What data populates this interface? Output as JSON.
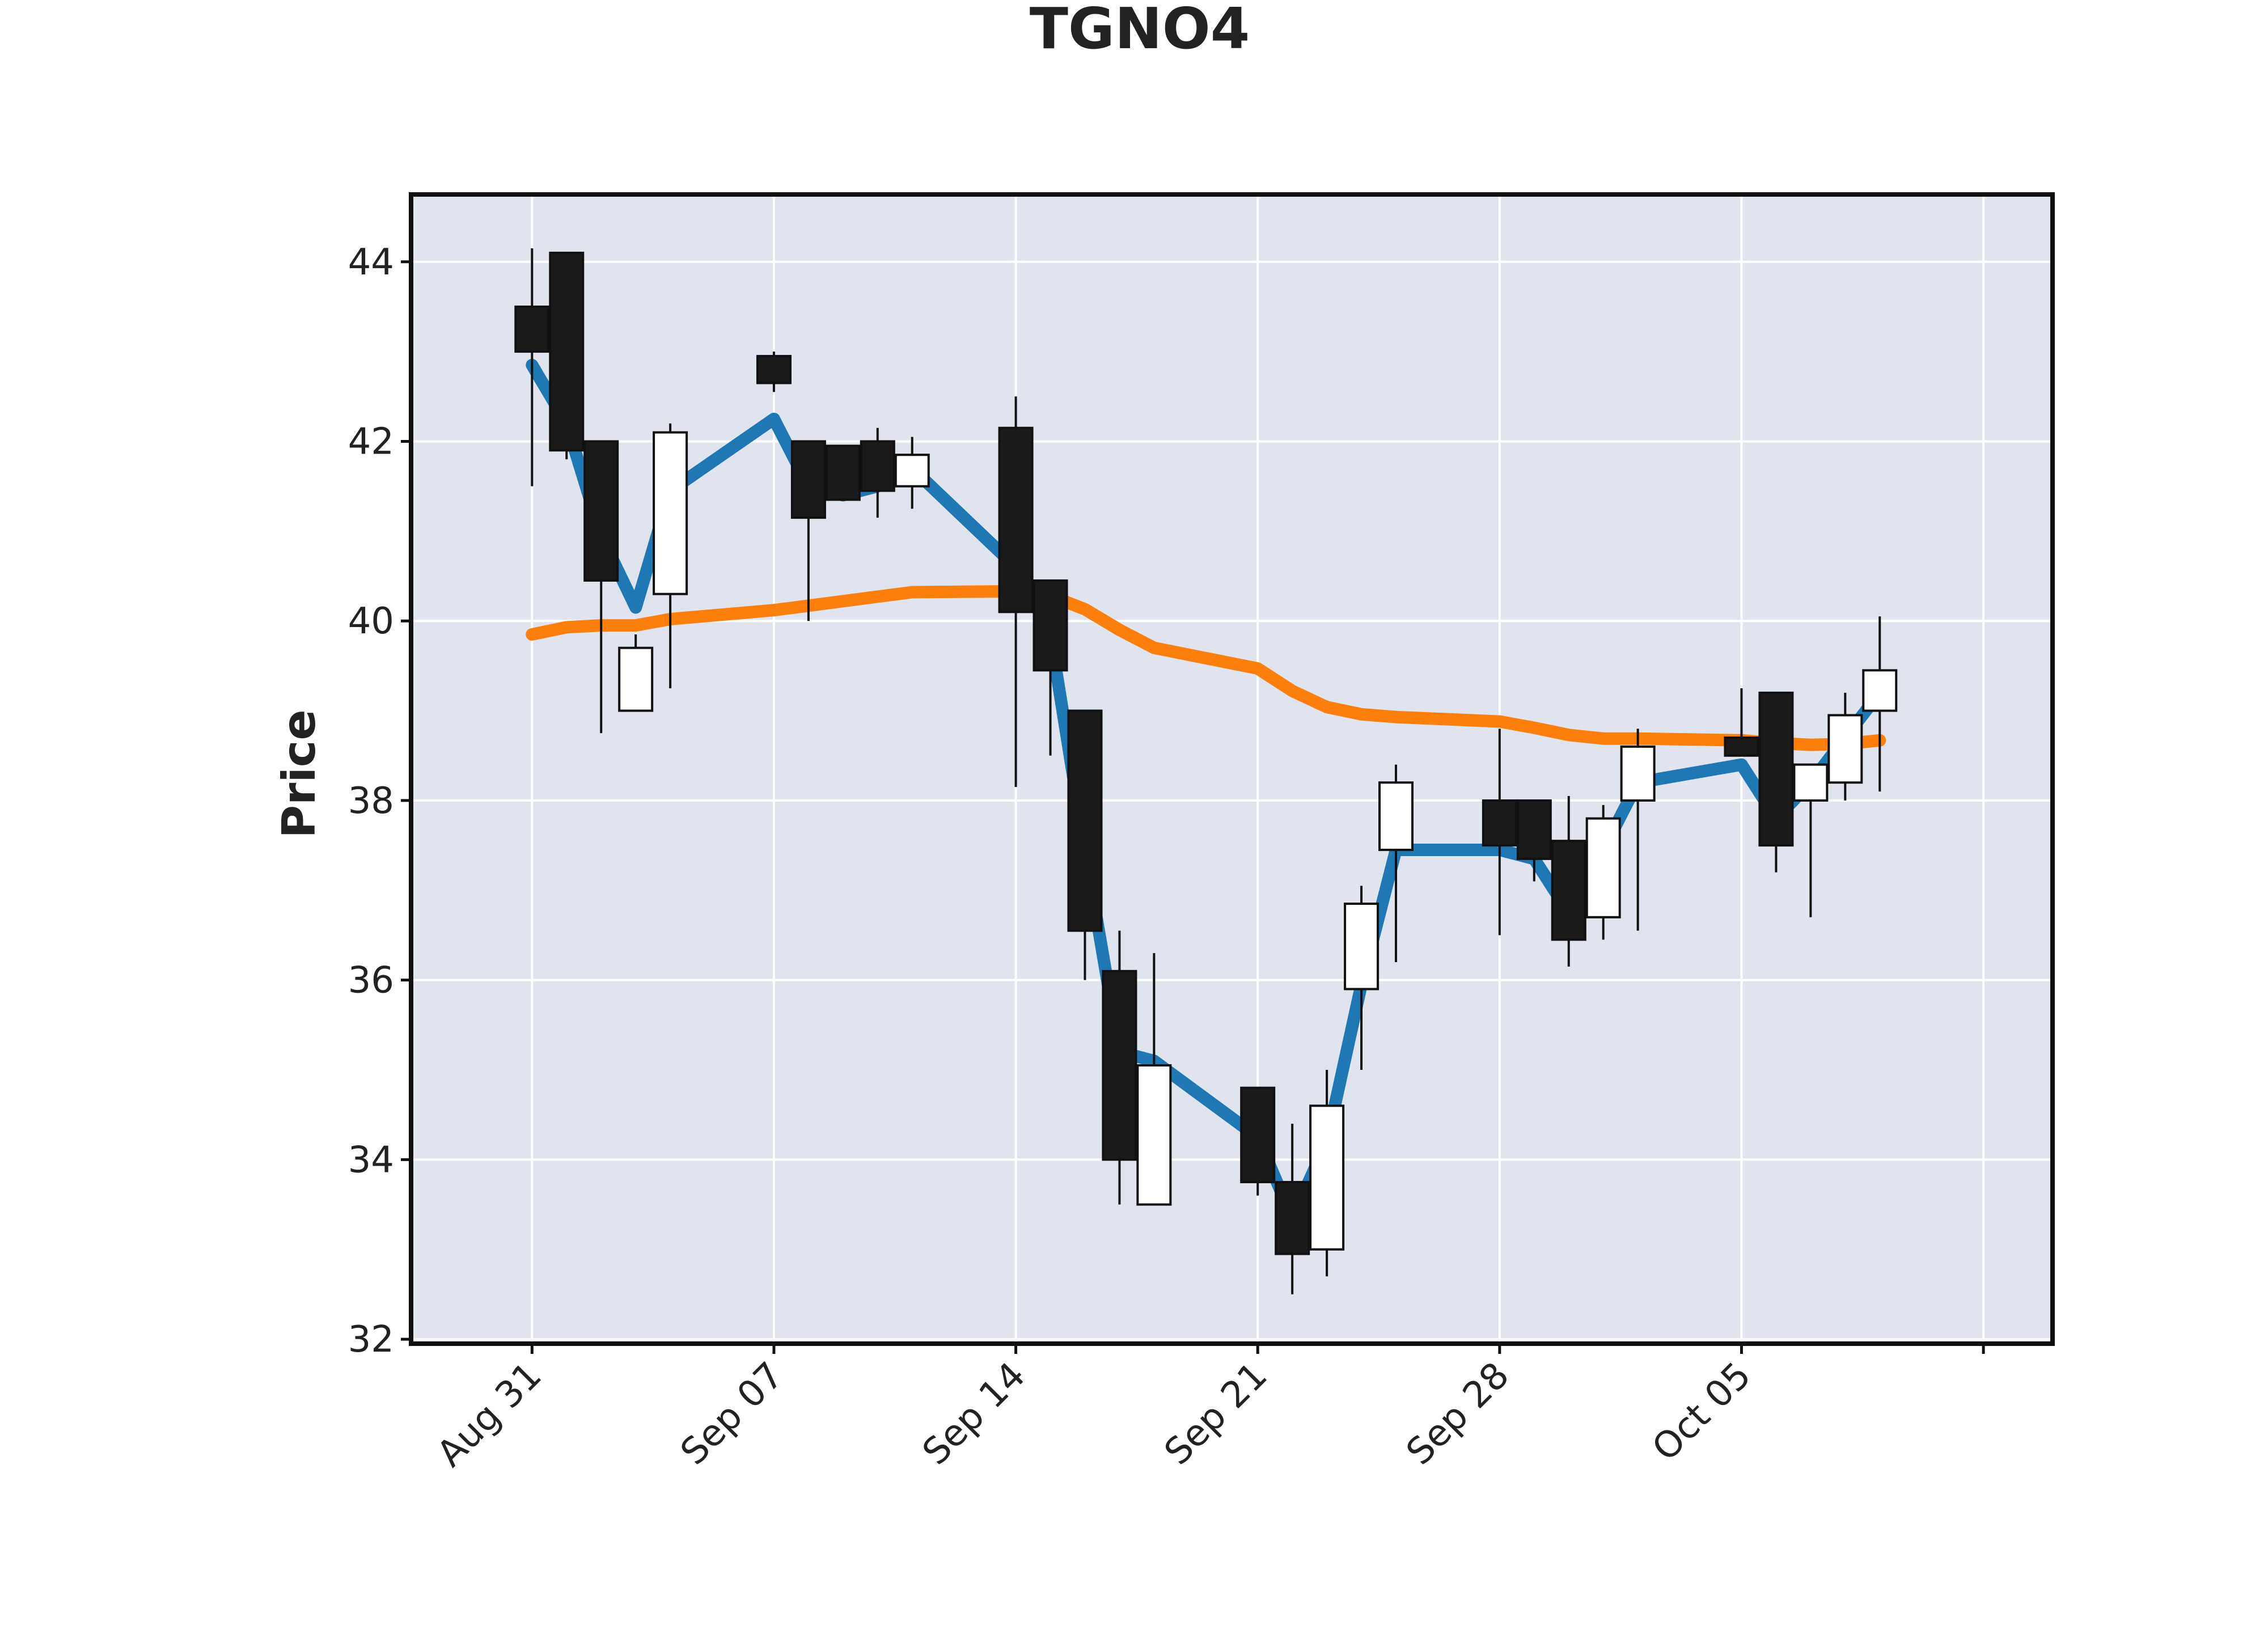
{
  "chart_data": {
    "type": "candlestick",
    "title": "TGNO4",
    "ylabel": "Price",
    "xlabel": "",
    "ylim": [
      31.95,
      44.75
    ],
    "yticks": [
      32,
      34,
      36,
      38,
      40,
      42,
      44
    ],
    "xticks": [
      {
        "label": "Aug 31",
        "day": 0
      },
      {
        "label": "Sep 07",
        "day": 7
      },
      {
        "label": "Sep 14",
        "day": 14
      },
      {
        "label": "Sep 21",
        "day": 21
      },
      {
        "label": "Sep 28",
        "day": 28
      },
      {
        "label": "Oct 05",
        "day": 35
      }
    ],
    "xlim": [
      -3.5,
      44
    ],
    "grid": true,
    "colors": {
      "background": "#dfe4ef",
      "grid": "#ffffff",
      "up": "#ffffff",
      "down": "#1a1a1a",
      "wick": "#111111",
      "ma_fast": "#1f77b4",
      "ma_slow": "#ff7f0e"
    },
    "candles": [
      {
        "date": "2020-08-31",
        "open": 43.5,
        "high": 44.15,
        "low": 41.5,
        "close": 43.0
      },
      {
        "date": "2020-09-01",
        "open": 44.1,
        "high": 44.1,
        "low": 41.8,
        "close": 41.9
      },
      {
        "date": "2020-09-02",
        "open": 42.0,
        "high": 42.0,
        "low": 38.75,
        "close": 40.45
      },
      {
        "date": "2020-09-03",
        "open": 39.0,
        "high": 39.85,
        "low": 39.0,
        "close": 39.7
      },
      {
        "date": "2020-09-04",
        "open": 40.3,
        "high": 42.2,
        "low": 39.25,
        "close": 42.1
      },
      {
        "date": "2020-09-07",
        "open": 42.95,
        "high": 43.0,
        "low": 42.55,
        "close": 42.65
      },
      {
        "date": "2020-09-08",
        "open": 42.0,
        "high": 42.0,
        "low": 40.0,
        "close": 41.15
      },
      {
        "date": "2020-09-09",
        "open": 41.95,
        "high": 41.95,
        "low": 41.35,
        "close": 41.35
      },
      {
        "date": "2020-09-10",
        "open": 42.0,
        "high": 42.15,
        "low": 41.15,
        "close": 41.45
      },
      {
        "date": "2020-09-11",
        "open": 41.5,
        "high": 42.05,
        "low": 41.25,
        "close": 41.85
      },
      {
        "date": "2020-09-14",
        "open": 42.15,
        "high": 42.5,
        "low": 38.15,
        "close": 40.1
      },
      {
        "date": "2020-09-15",
        "open": 40.45,
        "high": 40.45,
        "low": 38.5,
        "close": 39.45
      },
      {
        "date": "2020-09-16",
        "open": 39.0,
        "high": 39.0,
        "low": 36.0,
        "close": 36.55
      },
      {
        "date": "2020-09-17",
        "open": 36.1,
        "high": 36.55,
        "low": 33.5,
        "close": 34.0
      },
      {
        "date": "2020-09-18",
        "open": 33.5,
        "high": 36.3,
        "low": 33.5,
        "close": 35.05
      },
      {
        "date": "2020-09-21",
        "open": 34.8,
        "high": 34.8,
        "low": 33.6,
        "close": 33.75
      },
      {
        "date": "2020-09-22",
        "open": 33.75,
        "high": 34.4,
        "low": 32.5,
        "close": 32.95
      },
      {
        "date": "2020-09-23",
        "open": 33.0,
        "high": 35.0,
        "low": 32.7,
        "close": 34.6
      },
      {
        "date": "2020-09-24",
        "open": 35.9,
        "high": 37.05,
        "low": 35.0,
        "close": 36.85
      },
      {
        "date": "2020-09-25",
        "open": 37.45,
        "high": 38.4,
        "low": 36.2,
        "close": 38.2
      },
      {
        "date": "2020-09-28",
        "open": 38.0,
        "high": 38.8,
        "low": 36.5,
        "close": 37.5
      },
      {
        "date": "2020-09-29",
        "open": 38.0,
        "high": 38.0,
        "low": 37.1,
        "close": 37.35
      },
      {
        "date": "2020-09-30",
        "open": 37.55,
        "high": 38.05,
        "low": 36.15,
        "close": 36.45
      },
      {
        "date": "2020-10-01",
        "open": 36.7,
        "high": 37.95,
        "low": 36.45,
        "close": 37.8
      },
      {
        "date": "2020-10-02",
        "open": 38.0,
        "high": 38.8,
        "low": 36.55,
        "close": 38.6
      },
      {
        "date": "2020-10-05",
        "open": 38.7,
        "high": 39.25,
        "low": 38.5,
        "close": 38.5
      },
      {
        "date": "2020-10-06",
        "open": 39.2,
        "high": 39.2,
        "low": 37.2,
        "close": 37.5
      },
      {
        "date": "2020-10-07",
        "open": 38.0,
        "high": 38.4,
        "low": 36.7,
        "close": 38.4
      },
      {
        "date": "2020-10-08",
        "open": 38.2,
        "high": 39.2,
        "low": 38.0,
        "close": 38.95
      },
      {
        "date": "2020-10-09",
        "open": 39.0,
        "high": 40.05,
        "low": 38.1,
        "close": 39.45
      }
    ],
    "ma_fast": [
      42.85,
      42.2,
      40.95,
      40.15,
      41.45,
      42.25,
      41.5,
      41.4,
      41.5,
      41.7,
      40.6,
      39.85,
      37.45,
      35.2,
      35.1,
      34.25,
      33.35,
      34.2,
      35.95,
      37.45,
      37.45,
      37.35,
      36.75,
      37.45,
      38.2,
      38.4,
      37.8,
      38.2,
      38.7,
      39.2
    ],
    "ma_slow": [
      39.85,
      39.93,
      39.95,
      39.95,
      40.02,
      40.12,
      40.17,
      40.22,
      40.27,
      40.32,
      40.33,
      40.28,
      40.13,
      39.9,
      39.7,
      39.47,
      39.22,
      39.04,
      38.96,
      38.93,
      38.88,
      38.81,
      38.73,
      38.69,
      38.69,
      38.67,
      38.64,
      38.62,
      38.63,
      38.67
    ]
  }
}
